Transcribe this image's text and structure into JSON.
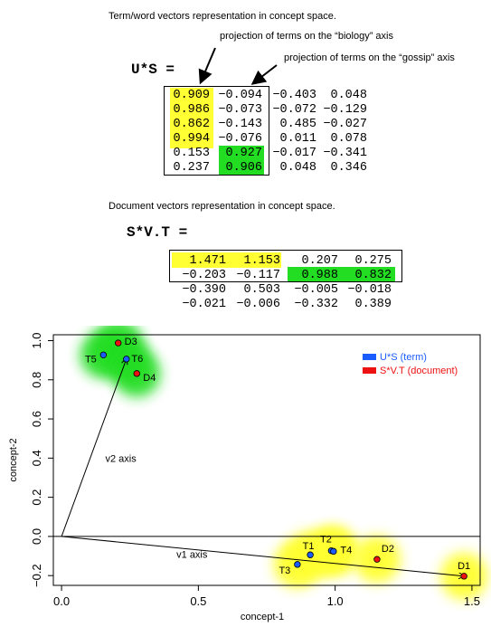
{
  "us_section": {
    "caption": "Term/word vectors representation in concept space.",
    "biology_note": "projection of terms on the “biology” axis",
    "gossip_note": "projection of terms on the “gossip” axis",
    "label": "U*S =",
    "rows": [
      [
        "0.909",
        "−0.094",
        "−0.403",
        "0.048"
      ],
      [
        "0.986",
        "−0.073",
        "−0.072",
        "−0.129"
      ],
      [
        "0.862",
        "−0.143",
        "0.485",
        "−0.027"
      ],
      [
        "0.994",
        "−0.076",
        "0.011",
        "0.078"
      ],
      [
        "0.153",
        "0.927",
        "−0.017",
        "−0.341"
      ],
      [
        "0.237",
        "0.906",
        "0.048",
        "0.346"
      ]
    ]
  },
  "svt_section": {
    "caption": "Document vectors representation in concept space.",
    "label": "S*V.T =",
    "rows": [
      [
        "1.471",
        "1.153",
        "0.207",
        "0.275"
      ],
      [
        "−0.203",
        "−0.117",
        "0.988",
        "0.832"
      ],
      [
        "−0.390",
        "0.503",
        "−0.005",
        "−0.018"
      ],
      [
        "−0.021",
        "−0.006",
        "−0.332",
        "0.389"
      ]
    ]
  },
  "colors": {
    "yellow_highlight": "#ffff33",
    "green_highlight": "#22dd22",
    "term_point": "#1a5cff",
    "doc_point": "#ee1111",
    "legend_term_text": "#1a5cff",
    "legend_doc_text": "#ee1111"
  },
  "chart_data": {
    "type": "scatter",
    "title": "",
    "xlabel": "concept-1",
    "ylabel": "concept-2",
    "xlim": [
      -0.03,
      1.53
    ],
    "ylim": [
      -0.25,
      1.03
    ],
    "xticks": [
      "0.0",
      "0.5",
      "1.0",
      "1.5"
    ],
    "xtick_values": [
      0.0,
      0.5,
      1.0,
      1.5
    ],
    "yticks": [
      "−0.2",
      "0.0",
      "0.2",
      "0.4",
      "0.6",
      "0.8",
      "1.0"
    ],
    "ytick_values": [
      -0.2,
      0.0,
      0.2,
      0.4,
      0.6,
      0.8,
      1.0
    ],
    "legend": {
      "placement": "top-right",
      "entries": [
        {
          "label": "U*S (term)",
          "color_key": "term_point"
        },
        {
          "label": "S*V.T (document)",
          "color_key": "doc_point"
        }
      ]
    },
    "series": [
      {
        "name": "U*S (term)",
        "points": [
          {
            "label": "T1",
            "x": 0.909,
            "y": -0.094
          },
          {
            "label": "T2",
            "x": 0.986,
            "y": -0.073
          },
          {
            "label": "T3",
            "x": 0.862,
            "y": -0.143
          },
          {
            "label": "T4",
            "x": 0.994,
            "y": -0.076
          },
          {
            "label": "T5",
            "x": 0.153,
            "y": 0.927
          },
          {
            "label": "T6",
            "x": 0.237,
            "y": 0.906
          }
        ]
      },
      {
        "name": "S*V.T (document)",
        "points": [
          {
            "label": "D1",
            "x": 1.471,
            "y": -0.203
          },
          {
            "label": "D2",
            "x": 1.153,
            "y": -0.117
          },
          {
            "label": "D3",
            "x": 0.207,
            "y": 0.988
          },
          {
            "label": "D4",
            "x": 0.275,
            "y": 0.832
          }
        ]
      }
    ],
    "axes_lines": [
      {
        "label": "v1 axis",
        "from": [
          0,
          0
        ],
        "to": [
          1.471,
          -0.203
        ]
      },
      {
        "label": "v2 axis",
        "from": [
          0,
          0
        ],
        "to": [
          0.237,
          0.906
        ]
      }
    ],
    "horizontal_line_at": 0.0
  }
}
